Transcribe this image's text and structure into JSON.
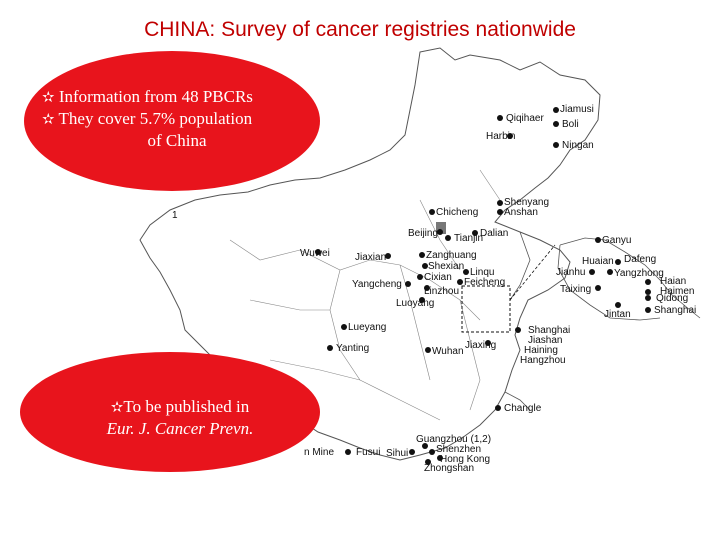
{
  "title": "CHINA: Survey of cancer registries nationwide",
  "callout_top": {
    "line1": "Information from 48 PBCRs",
    "line2": "They cover 5.7% population",
    "line3": "of China",
    "bullet_icon": "star-icon"
  },
  "callout_bottom": {
    "line1": "To be published in",
    "line2": "Eur. J. Cancer Prevn.",
    "bullet_icon": "star-icon"
  },
  "colors": {
    "title": "#c00000",
    "callout_fill": "#e8141c",
    "map_line": "#555555"
  },
  "cities": {
    "jiamusi": "Jiamusi",
    "qiqihaer": "Qiqihaer",
    "boli": "Boli",
    "harbin": "Harbin",
    "ningan": "Ningan",
    "shenyang": "Shenyang",
    "anshan": "Anshan",
    "chicheng": "Chicheng",
    "dalian": "Dalian",
    "beijing": "Beijing",
    "tianjin": "Tianjin",
    "zanghuang": "Zanghuang",
    "wuwei": "Wuwei",
    "jiaxian": "Jiaxian",
    "shexian": "Shexian",
    "cixian": "Cixian",
    "linqu": "Linqu",
    "feicheng": "Feicheng",
    "yangcheng": "Yangcheng",
    "linzhou": "Linzhou",
    "luoyang": "Luoyang",
    "ganyu": "Ganyu",
    "huaian": "Huaian",
    "dafeng": "Dafeng",
    "jianhu": "Jianhu",
    "yangzhong": "Yangzhong",
    "taixing": "Taixing",
    "haian": "Haian",
    "haimen": "Haimen",
    "qidong": "Qidong",
    "jintan": "Jintan",
    "shanghai_inset": "Shanghai",
    "lueyang": "Lueyang",
    "yanting": "Yanting",
    "jiaxing": "Jiaxing",
    "wuhan": "Wuhan",
    "shanghai": "Shanghai",
    "jiashan": "Jiashan",
    "haining": "Haining",
    "hangzhou": "Hangzhou",
    "changle": "Changle",
    "mine": "n Mine",
    "fusui": "Fusui",
    "sihui": "Sihui",
    "guangzhou": "Guangzhou (1,2)",
    "shenzhen": "Shenzhen",
    "hongkong": "Hong Kong",
    "zhongshan": "Zhongshan",
    "map_label_1": "1"
  }
}
